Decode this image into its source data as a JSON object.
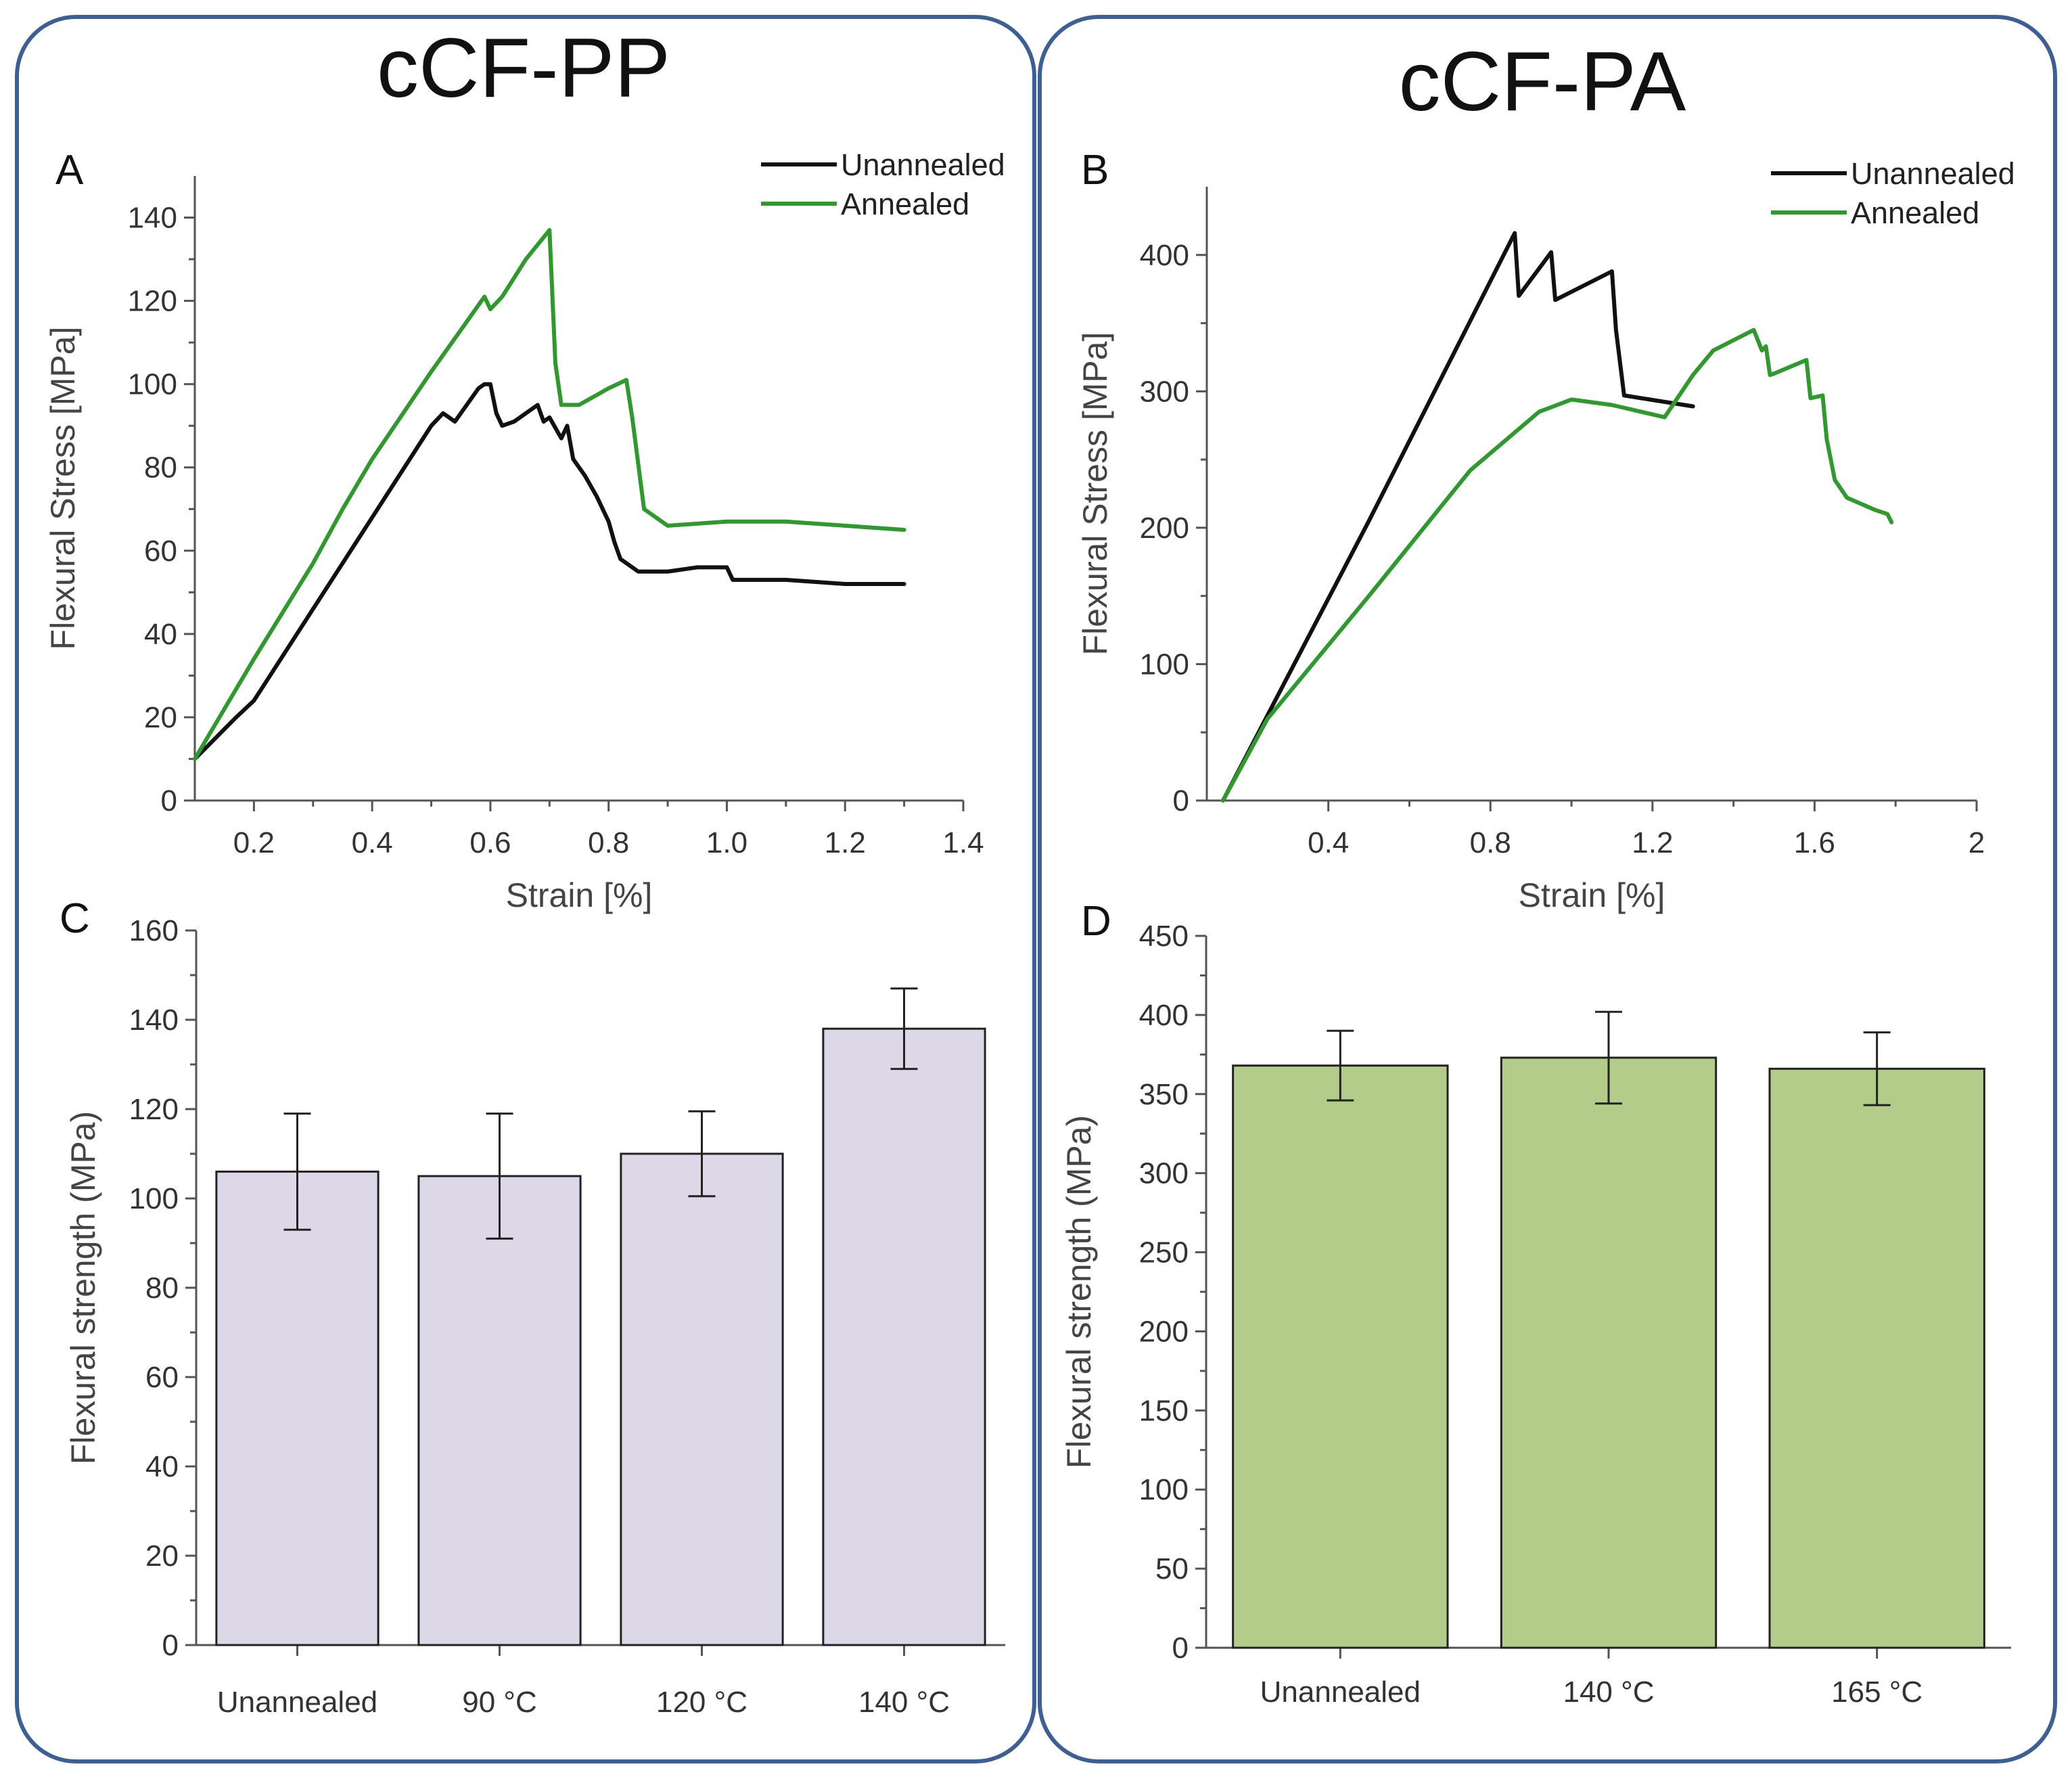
{
  "titles": {
    "left": "cCF-PP",
    "right": "cCF-PA"
  },
  "colors": {
    "frame": "#3c5f95",
    "unannealed": "#111111",
    "annealed": "#2e9a2e",
    "bar_pp": "#dcd8e8",
    "bar_pa": "#b3cc8a"
  },
  "chart_data": [
    {
      "id": "A",
      "type": "line",
      "panel_label": "A",
      "group": "cCF-PP",
      "xlabel": "Strain [%]",
      "ylabel": "Flexural Stress [MPa]",
      "xlim": [
        0.1,
        1.4
      ],
      "ylim": [
        0,
        150
      ],
      "xticks": [
        0.2,
        0.4,
        0.6,
        0.8,
        1.0,
        1.2,
        1.4
      ],
      "xtick_labels": [
        "0.2",
        "0.4",
        "0.6",
        "0.8",
        "1.0",
        "1.2",
        "1.4"
      ],
      "yticks": [
        0,
        20,
        40,
        60,
        80,
        100,
        120,
        140
      ],
      "ytick_labels": [
        "0",
        "20",
        "40",
        "60",
        "80",
        "100",
        "120",
        "140"
      ],
      "legend": [
        "Unannealed",
        "Annealed"
      ],
      "legend_position": "top-right",
      "series": [
        {
          "name": "Unannealed",
          "color_key": "unannealed",
          "x": [
            0.1,
            0.17,
            0.2,
            0.3,
            0.4,
            0.5,
            0.52,
            0.54,
            0.58,
            0.59,
            0.6,
            0.61,
            0.62,
            0.64,
            0.68,
            0.69,
            0.7,
            0.72,
            0.73,
            0.74,
            0.76,
            0.78,
            0.8,
            0.81,
            0.82,
            0.85,
            0.9,
            0.95,
            1.0,
            1.01,
            1.1,
            1.2,
            1.3
          ],
          "y": [
            10,
            20,
            24,
            46,
            68,
            90,
            93,
            91,
            99,
            100,
            100,
            93,
            90,
            91,
            95,
            91,
            92,
            87,
            90,
            82,
            78,
            73,
            67,
            62,
            58,
            55,
            55,
            56,
            56,
            53,
            53,
            52,
            52
          ]
        },
        {
          "name": "Annealed",
          "color_key": "annealed",
          "x": [
            0.1,
            0.15,
            0.2,
            0.3,
            0.35,
            0.4,
            0.5,
            0.55,
            0.59,
            0.6,
            0.62,
            0.66,
            0.7,
            0.71,
            0.72,
            0.75,
            0.8,
            0.83,
            0.84,
            0.86,
            0.9,
            1.0,
            1.1,
            1.2,
            1.3
          ],
          "y": [
            10,
            22,
            34,
            57,
            70,
            82,
            103,
            113,
            121,
            118,
            121,
            130,
            137,
            105,
            95,
            95,
            99,
            101,
            92,
            70,
            66,
            67,
            67,
            66,
            65
          ]
        }
      ]
    },
    {
      "id": "B",
      "type": "line",
      "panel_label": "B",
      "group": "cCF-PA",
      "xlabel": "Strain [%]",
      "ylabel": "Flexural Stress [MPa]",
      "xlim": [
        0.1,
        2.0
      ],
      "ylim": [
        0,
        450
      ],
      "xticks": [
        0.4,
        0.8,
        1.2,
        1.6,
        2.0
      ],
      "xtick_labels": [
        "0.4",
        "0.8",
        "1.2",
        "1.6",
        "2"
      ],
      "yticks": [
        0,
        100,
        200,
        300,
        400
      ],
      "ytick_labels": [
        "0",
        "100",
        "200",
        "300",
        "400"
      ],
      "legend": [
        "Unannealed",
        "Annealed"
      ],
      "legend_position": "top-right",
      "series": [
        {
          "name": "Unannealed",
          "color_key": "unannealed",
          "x": [
            0.14,
            0.5,
            0.86,
            0.87,
            0.95,
            0.96,
            1.1,
            1.11,
            1.13,
            1.3
          ],
          "y": [
            0,
            205,
            416,
            370,
            402,
            367,
            388,
            345,
            297,
            289
          ]
        },
        {
          "name": "Annealed",
          "color_key": "annealed",
          "x": [
            0.14,
            0.25,
            0.5,
            0.75,
            0.92,
            1.0,
            1.1,
            1.23,
            1.3,
            1.35,
            1.45,
            1.47,
            1.48,
            1.49,
            1.5,
            1.58,
            1.59,
            1.62,
            1.63,
            1.65,
            1.68,
            1.75,
            1.78,
            1.79
          ],
          "y": [
            0,
            60,
            150,
            242,
            285,
            294,
            290,
            281,
            312,
            330,
            345,
            330,
            333,
            312,
            313,
            323,
            295,
            297,
            265,
            235,
            222,
            213,
            210,
            204
          ]
        }
      ]
    },
    {
      "id": "C",
      "type": "bar",
      "panel_label": "C",
      "group": "cCF-PP",
      "xlabel": "",
      "ylabel": "Flexural strength (MPa)",
      "ylim": [
        0,
        160
      ],
      "yticks": [
        0,
        20,
        40,
        60,
        80,
        100,
        120,
        140,
        160
      ],
      "ytick_labels": [
        "0",
        "20",
        "40",
        "60",
        "80",
        "100",
        "120",
        "140",
        "160"
      ],
      "categories": [
        "Unannealed",
        "90 °C",
        "120 °C",
        "140 °C"
      ],
      "values": [
        106,
        105,
        110,
        138
      ],
      "errors": [
        13,
        14,
        9.5,
        9
      ],
      "color_key": "bar_pp"
    },
    {
      "id": "D",
      "type": "bar",
      "panel_label": "D",
      "group": "cCF-PA",
      "xlabel": "",
      "ylabel": "Flexural strength (MPa)",
      "ylim": [
        0,
        450
      ],
      "yticks": [
        0,
        50,
        100,
        150,
        200,
        250,
        300,
        350,
        400,
        450
      ],
      "ytick_labels": [
        "0",
        "50",
        "100",
        "150",
        "200",
        "250",
        "300",
        "350",
        "400",
        "450"
      ],
      "categories": [
        "Unannealed",
        "140 °C",
        "165 °C"
      ],
      "values": [
        368,
        373,
        366
      ],
      "errors": [
        22,
        29,
        23
      ],
      "color_key": "bar_pa"
    }
  ]
}
